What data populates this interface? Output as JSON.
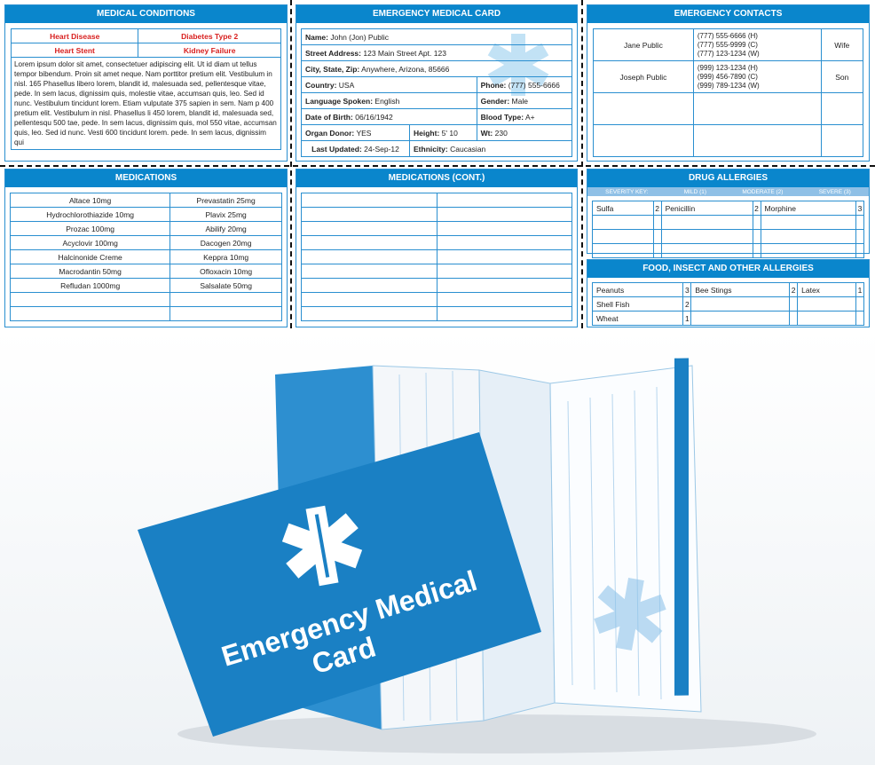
{
  "medical_conditions": {
    "title": "MEDICAL CONDITIONS",
    "conditions": [
      "Heart Disease",
      "Diabetes Type 2",
      "Heart Stent",
      "Kidney Failure"
    ],
    "notes": "Lorem ipsum dolor sit amet, consectetuer adipiscing elit. Ut id diam ut tellus tempor bibendum. Proin sit amet neque. Nam porttitor pretium elit. Vestibulum in nisl. 165 Phasellus libero lorem, blandit id, malesuada sed, pellentesque vitae, pede. In sem lacus, dignissim quis, molestie vitae, accumsan quis, leo. Sed id nunc. Vestibulum tincidunt lorem. Etiam vulputate 375 sapien in sem. Nam p 400 pretium elit. Vestibulum in nisl. Phasellus li 450 lorem, blandit id, malesuada sed, pellentesqu 500 tae, pede. In sem lacus, dignissim quis, mol 550 vitae, accumsan quis, leo. Sed id nunc. Vesti 600 tincidunt lorem. pede. In sem lacus, dignissim qui"
  },
  "card": {
    "title": "EMERGENCY MEDICAL CARD",
    "name_l": "Name:",
    "name": "John (Jon) Public",
    "street_l": "Street Address:",
    "street": "123 Main Street Apt. 123",
    "city_l": "City, State, Zip:",
    "city": "Anywhere, Arizona, 85666",
    "country_l": "Country:",
    "country": "USA",
    "phone_l": "Phone:",
    "phone": "(777) 555-6666",
    "lang_l": "Language Spoken:",
    "lang": "English",
    "gender_l": "Gender:",
    "gender": "Male",
    "dob_l": "Date of Birth:",
    "dob": "06/16/1942",
    "blood_l": "Blood Type:",
    "blood": "A+",
    "donor_l": "Organ Donor:",
    "donor": "YES",
    "height_l": "Height:",
    "height": "5' 10",
    "wt_l": "Wt:",
    "wt": "230",
    "updated_l": "Last Updated:",
    "updated": "24-Sep-12",
    "eth_l": "Ethnicity:",
    "eth": "Caucasian"
  },
  "contacts": {
    "title": "EMERGENCY CONTACTS",
    "rows": [
      {
        "name": "Jane Public",
        "phones": [
          "(777) 555-6666 (H)",
          "(777) 555-9999 (C)",
          "(777) 123-1234 (W)"
        ],
        "relation": "Wife"
      },
      {
        "name": "Joseph Public",
        "phones": [
          "(999) 123-1234 (H)",
          "(999) 456-7890 (C)",
          "(999) 789-1234 (W)"
        ],
        "relation": "Son"
      }
    ]
  },
  "medications": {
    "title": "MEDICATIONS",
    "rows": [
      [
        "Altace 10mg",
        "Prevastatin 25mg"
      ],
      [
        "Hydrochlorothiazide 10mg",
        "Plavix 25mg"
      ],
      [
        "Prozac 100mg",
        "Abilify 20mg"
      ],
      [
        "Acyclovir 100mg",
        "Dacogen 20mg"
      ],
      [
        "Halcinonide Creme",
        "Keppra 10mg"
      ],
      [
        "Macrodantin 50mg",
        "Ofloxacin 10mg"
      ],
      [
        "Refludan 1000mg",
        "Salsalate 50mg"
      ]
    ]
  },
  "medications_cont": {
    "title": "MEDICATIONS (CONT.)"
  },
  "drug_allergies": {
    "title": "DRUG ALLERGIES",
    "key": [
      "SEVERITY KEY:",
      "MILD (1)",
      "MODERATE (2)",
      "SEVERE (3)"
    ],
    "items": [
      {
        "name": "Sulfa",
        "sev": "2"
      },
      {
        "name": "Penicillin",
        "sev": "2"
      },
      {
        "name": "Morphine",
        "sev": "3"
      }
    ]
  },
  "other_allergies": {
    "title": "FOOD, INSECT AND OTHER ALLERGIES",
    "rows": [
      [
        {
          "name": "Peanuts",
          "sev": "3"
        },
        {
          "name": "Bee Stings",
          "sev": "2"
        },
        {
          "name": "Latex",
          "sev": "1"
        }
      ],
      [
        {
          "name": "Shell Fish",
          "sev": "2"
        }
      ],
      [
        {
          "name": "Wheat",
          "sev": "1"
        }
      ]
    ]
  },
  "photo": {
    "sleeve_text_1": "Emergency Medical",
    "sleeve_text_2": "Card",
    "colors": {
      "sleeve": "#1a80c4",
      "panel_blue": "#0a86cc"
    }
  }
}
